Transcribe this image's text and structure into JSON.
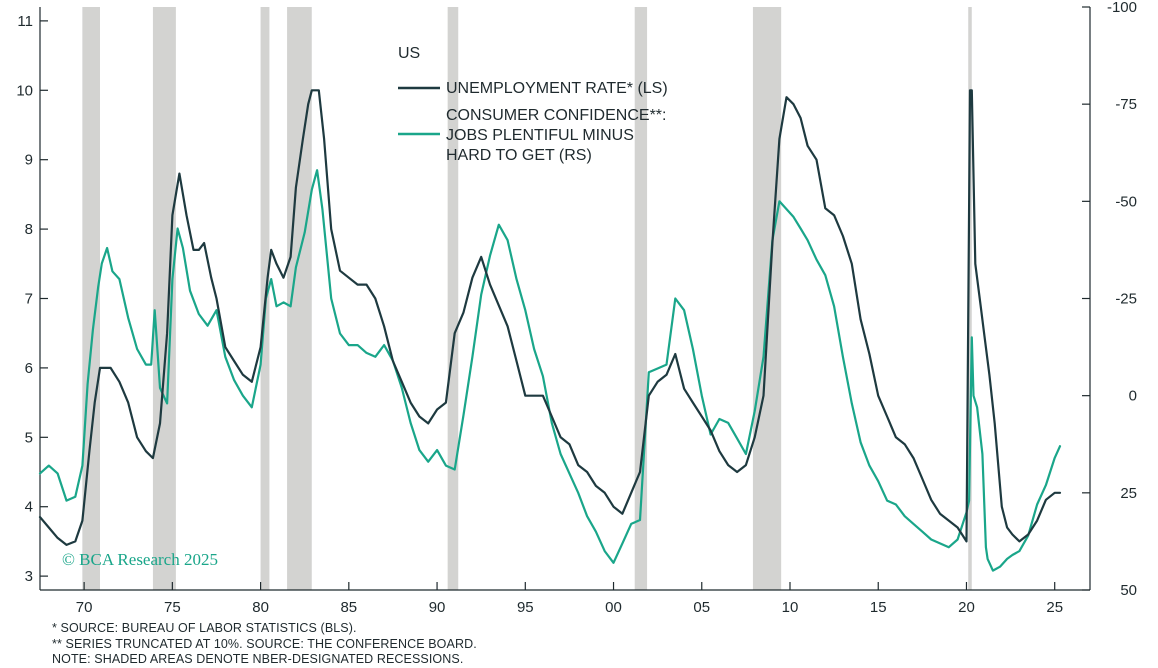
{
  "chart_data": {
    "type": "line",
    "title": "US",
    "watermark": "© BCA Research 2025",
    "footnotes": [
      "*  SOURCE: BUREAU OF LABOR STATISTICS (BLS).",
      "** SERIES TRUNCATED AT 10%. SOURCE: THE CONFERENCE BOARD.",
      "NOTE: SHADED AREAS DENOTE NBER-DESIGNATED RECESSIONS."
    ],
    "x_axis": {
      "range": [
        1967.5,
        2027.0
      ],
      "ticks": [
        1970,
        1975,
        1980,
        1985,
        1990,
        1995,
        2000,
        2005,
        2010,
        2015,
        2020,
        2025
      ],
      "tick_labels": [
        "70",
        "75",
        "80",
        "85",
        "90",
        "95",
        "00",
        "05",
        "10",
        "15",
        "20",
        "25"
      ]
    },
    "y_left": {
      "range": [
        2.8,
        11.2
      ],
      "ticks": [
        3,
        4,
        5,
        6,
        7,
        8,
        9,
        10,
        11
      ]
    },
    "y_right": {
      "inverted": true,
      "range": [
        50,
        -100
      ],
      "ticks": [
        -100,
        -75,
        -50,
        -25,
        0,
        25,
        50
      ],
      "tick_labels": [
        "-100",
        "-75",
        "-50",
        "-25",
        "0",
        "25",
        "50"
      ]
    },
    "grid": false,
    "legend_position": "top-center",
    "recessions": [
      [
        1969.9,
        1970.9
      ],
      [
        1973.9,
        1975.2
      ],
      [
        1980.0,
        1980.5
      ],
      [
        1981.5,
        1982.9
      ],
      [
        1990.6,
        1991.2
      ],
      [
        2001.2,
        2001.9
      ],
      [
        2007.9,
        2009.5
      ],
      [
        2020.1,
        2020.3
      ]
    ],
    "series": [
      {
        "name": "UNEMPLOYMENT RATE* (LS)",
        "axis": "left",
        "color": "#1e3a40",
        "x": [
          1967.5,
          1968.0,
          1968.5,
          1969.0,
          1969.5,
          1969.9,
          1970.3,
          1970.6,
          1970.9,
          1971.5,
          1972.0,
          1972.5,
          1973.0,
          1973.5,
          1973.9,
          1974.3,
          1974.7,
          1975.0,
          1975.4,
          1975.8,
          1976.2,
          1976.5,
          1976.8,
          1977.2,
          1977.5,
          1978.0,
          1978.5,
          1979.0,
          1979.5,
          1980.0,
          1980.4,
          1980.6,
          1980.9,
          1981.3,
          1981.7,
          1982.0,
          1982.4,
          1982.7,
          1982.9,
          1983.3,
          1983.6,
          1984.0,
          1984.5,
          1985.0,
          1985.5,
          1986.0,
          1986.5,
          1987.0,
          1987.5,
          1988.0,
          1988.5,
          1989.0,
          1989.5,
          1990.0,
          1990.5,
          1991.0,
          1991.5,
          1992.0,
          1992.5,
          1993.0,
          1993.5,
          1994.0,
          1994.5,
          1995.0,
          1995.5,
          1996.0,
          1996.5,
          1997.0,
          1997.5,
          1998.0,
          1998.5,
          1999.0,
          1999.5,
          2000.0,
          2000.5,
          2001.0,
          2001.5,
          2002.0,
          2002.5,
          2003.0,
          2003.5,
          2004.0,
          2004.5,
          2005.0,
          2005.5,
          2006.0,
          2006.5,
          2007.0,
          2007.5,
          2008.0,
          2008.5,
          2009.0,
          2009.4,
          2009.8,
          2010.2,
          2010.6,
          2011.0,
          2011.5,
          2012.0,
          2012.5,
          2013.0,
          2013.5,
          2014.0,
          2014.5,
          2015.0,
          2015.5,
          2016.0,
          2016.5,
          2017.0,
          2017.5,
          2018.0,
          2018.5,
          2019.0,
          2019.5,
          2020.0,
          2020.2,
          2020.3,
          2020.5,
          2020.8,
          2021.0,
          2021.3,
          2021.6,
          2022.0,
          2022.3,
          2022.6,
          2023.0,
          2023.5,
          2024.0,
          2024.5,
          2025.0,
          2025.3
        ],
        "y": [
          3.85,
          3.7,
          3.55,
          3.45,
          3.5,
          3.8,
          4.8,
          5.5,
          6.0,
          6.0,
          5.8,
          5.5,
          5.0,
          4.8,
          4.7,
          5.2,
          6.5,
          8.2,
          8.8,
          8.2,
          7.7,
          7.7,
          7.8,
          7.3,
          7.0,
          6.3,
          6.1,
          5.9,
          5.8,
          6.3,
          7.3,
          7.7,
          7.5,
          7.3,
          7.6,
          8.6,
          9.3,
          9.8,
          10.0,
          10.0,
          9.3,
          8.0,
          7.4,
          7.3,
          7.2,
          7.2,
          7.0,
          6.6,
          6.1,
          5.8,
          5.5,
          5.3,
          5.2,
          5.4,
          5.5,
          6.5,
          6.8,
          7.3,
          7.6,
          7.2,
          6.9,
          6.6,
          6.1,
          5.6,
          5.6,
          5.6,
          5.3,
          5.0,
          4.9,
          4.6,
          4.5,
          4.3,
          4.2,
          4.0,
          3.9,
          4.2,
          4.5,
          5.6,
          5.8,
          5.9,
          6.2,
          5.7,
          5.5,
          5.3,
          5.1,
          4.8,
          4.6,
          4.5,
          4.6,
          5.0,
          5.6,
          7.8,
          9.3,
          9.9,
          9.8,
          9.6,
          9.2,
          9.0,
          8.3,
          8.2,
          7.9,
          7.5,
          6.7,
          6.2,
          5.6,
          5.3,
          5.0,
          4.9,
          4.7,
          4.4,
          4.1,
          3.9,
          3.8,
          3.7,
          3.5,
          10.0,
          10.0,
          7.5,
          6.9,
          6.5,
          5.9,
          5.2,
          4.0,
          3.7,
          3.6,
          3.5,
          3.6,
          3.8,
          4.1,
          4.2,
          4.2
        ]
      },
      {
        "name": "CONSUMER CONFIDENCE**: JOBS PLENTIFUL MINUS HARD TO GET (RS)",
        "axis": "right",
        "color": "#1aa68a",
        "x": [
          1967.5,
          1968.0,
          1968.5,
          1969.0,
          1969.5,
          1969.9,
          1970.2,
          1970.5,
          1970.8,
          1971.0,
          1971.3,
          1971.6,
          1972.0,
          1972.5,
          1973.0,
          1973.5,
          1973.8,
          1974.0,
          1974.3,
          1974.7,
          1975.0,
          1975.3,
          1975.6,
          1976.0,
          1976.5,
          1977.0,
          1977.5,
          1978.0,
          1978.5,
          1979.0,
          1979.5,
          1980.0,
          1980.3,
          1980.6,
          1980.9,
          1981.3,
          1981.7,
          1982.0,
          1982.5,
          1982.9,
          1983.2,
          1983.5,
          1984.0,
          1984.5,
          1985.0,
          1985.5,
          1986.0,
          1986.5,
          1987.0,
          1987.5,
          1988.0,
          1988.5,
          1989.0,
          1989.5,
          1990.0,
          1990.5,
          1991.0,
          1991.5,
          1992.0,
          1992.5,
          1993.0,
          1993.5,
          1994.0,
          1994.5,
          1995.0,
          1995.5,
          1996.0,
          1996.5,
          1997.0,
          1997.5,
          1998.0,
          1998.5,
          1999.0,
          1999.5,
          2000.0,
          2000.5,
          2001.0,
          2001.5,
          2002.0,
          2002.5,
          2003.0,
          2003.5,
          2004.0,
          2004.5,
          2005.0,
          2005.5,
          2006.0,
          2006.5,
          2007.0,
          2007.5,
          2008.0,
          2008.5,
          2009.0,
          2009.4,
          2009.8,
          2010.2,
          2010.6,
          2011.0,
          2011.5,
          2012.0,
          2012.5,
          2013.0,
          2013.5,
          2014.0,
          2014.5,
          2015.0,
          2015.5,
          2016.0,
          2016.5,
          2017.0,
          2017.5,
          2018.0,
          2018.5,
          2019.0,
          2019.5,
          2020.0,
          2020.15,
          2020.3,
          2020.4,
          2020.6,
          2020.9,
          2021.1,
          2021.2,
          2021.5,
          2021.9,
          2022.3,
          2022.6,
          2023.0,
          2023.5,
          2024.0,
          2024.5,
          2025.0,
          2025.3
        ],
        "y": [
          20,
          18,
          20,
          27,
          26,
          18,
          -3,
          -17,
          -28,
          -34,
          -38,
          -32,
          -30,
          -20,
          -12,
          -8,
          -8,
          -22,
          -2,
          2,
          -30,
          -43,
          -38,
          -27,
          -21,
          -18,
          -22,
          -10,
          -4,
          0,
          3,
          -8,
          -25,
          -30,
          -23,
          -24,
          -23,
          -33,
          -42,
          -53,
          -58,
          -48,
          -25,
          -16,
          -13,
          -13,
          -11,
          -10,
          -13,
          -9,
          -2,
          7,
          14,
          17,
          14,
          18,
          19,
          5,
          -10,
          -26,
          -36,
          -44,
          -40,
          -30,
          -22,
          -12,
          -5,
          7,
          15,
          20,
          25,
          31,
          35,
          40,
          43,
          38,
          33,
          32,
          -6,
          -7,
          -8,
          -25,
          -22,
          -12,
          0,
          10,
          6,
          7,
          11,
          15,
          4,
          -10,
          -40,
          -50,
          -48,
          -46,
          -43,
          -40,
          -35,
          -31,
          -23,
          -10,
          2,
          12,
          18,
          22,
          27,
          28,
          31,
          33,
          35,
          37,
          38,
          39,
          37,
          30,
          27,
          -15,
          0,
          3,
          15,
          39,
          42,
          45,
          44,
          42,
          41,
          40,
          36,
          28,
          23,
          16,
          13
        ]
      }
    ]
  },
  "legend": {
    "title": "US",
    "line1": "UNEMPLOYMENT RATE* (LS)",
    "line2a": "CONSUMER CONFIDENCE**:",
    "line2b": "JOBS PLENTIFUL MINUS",
    "line2c": "HARD TO GET (RS)"
  },
  "colors": {
    "recession": "#d3d3d1",
    "axis": "#1f2a2e",
    "unemployment": "#1e3a40",
    "confidence": "#1aa68a",
    "watermark": "#1aa68a"
  }
}
